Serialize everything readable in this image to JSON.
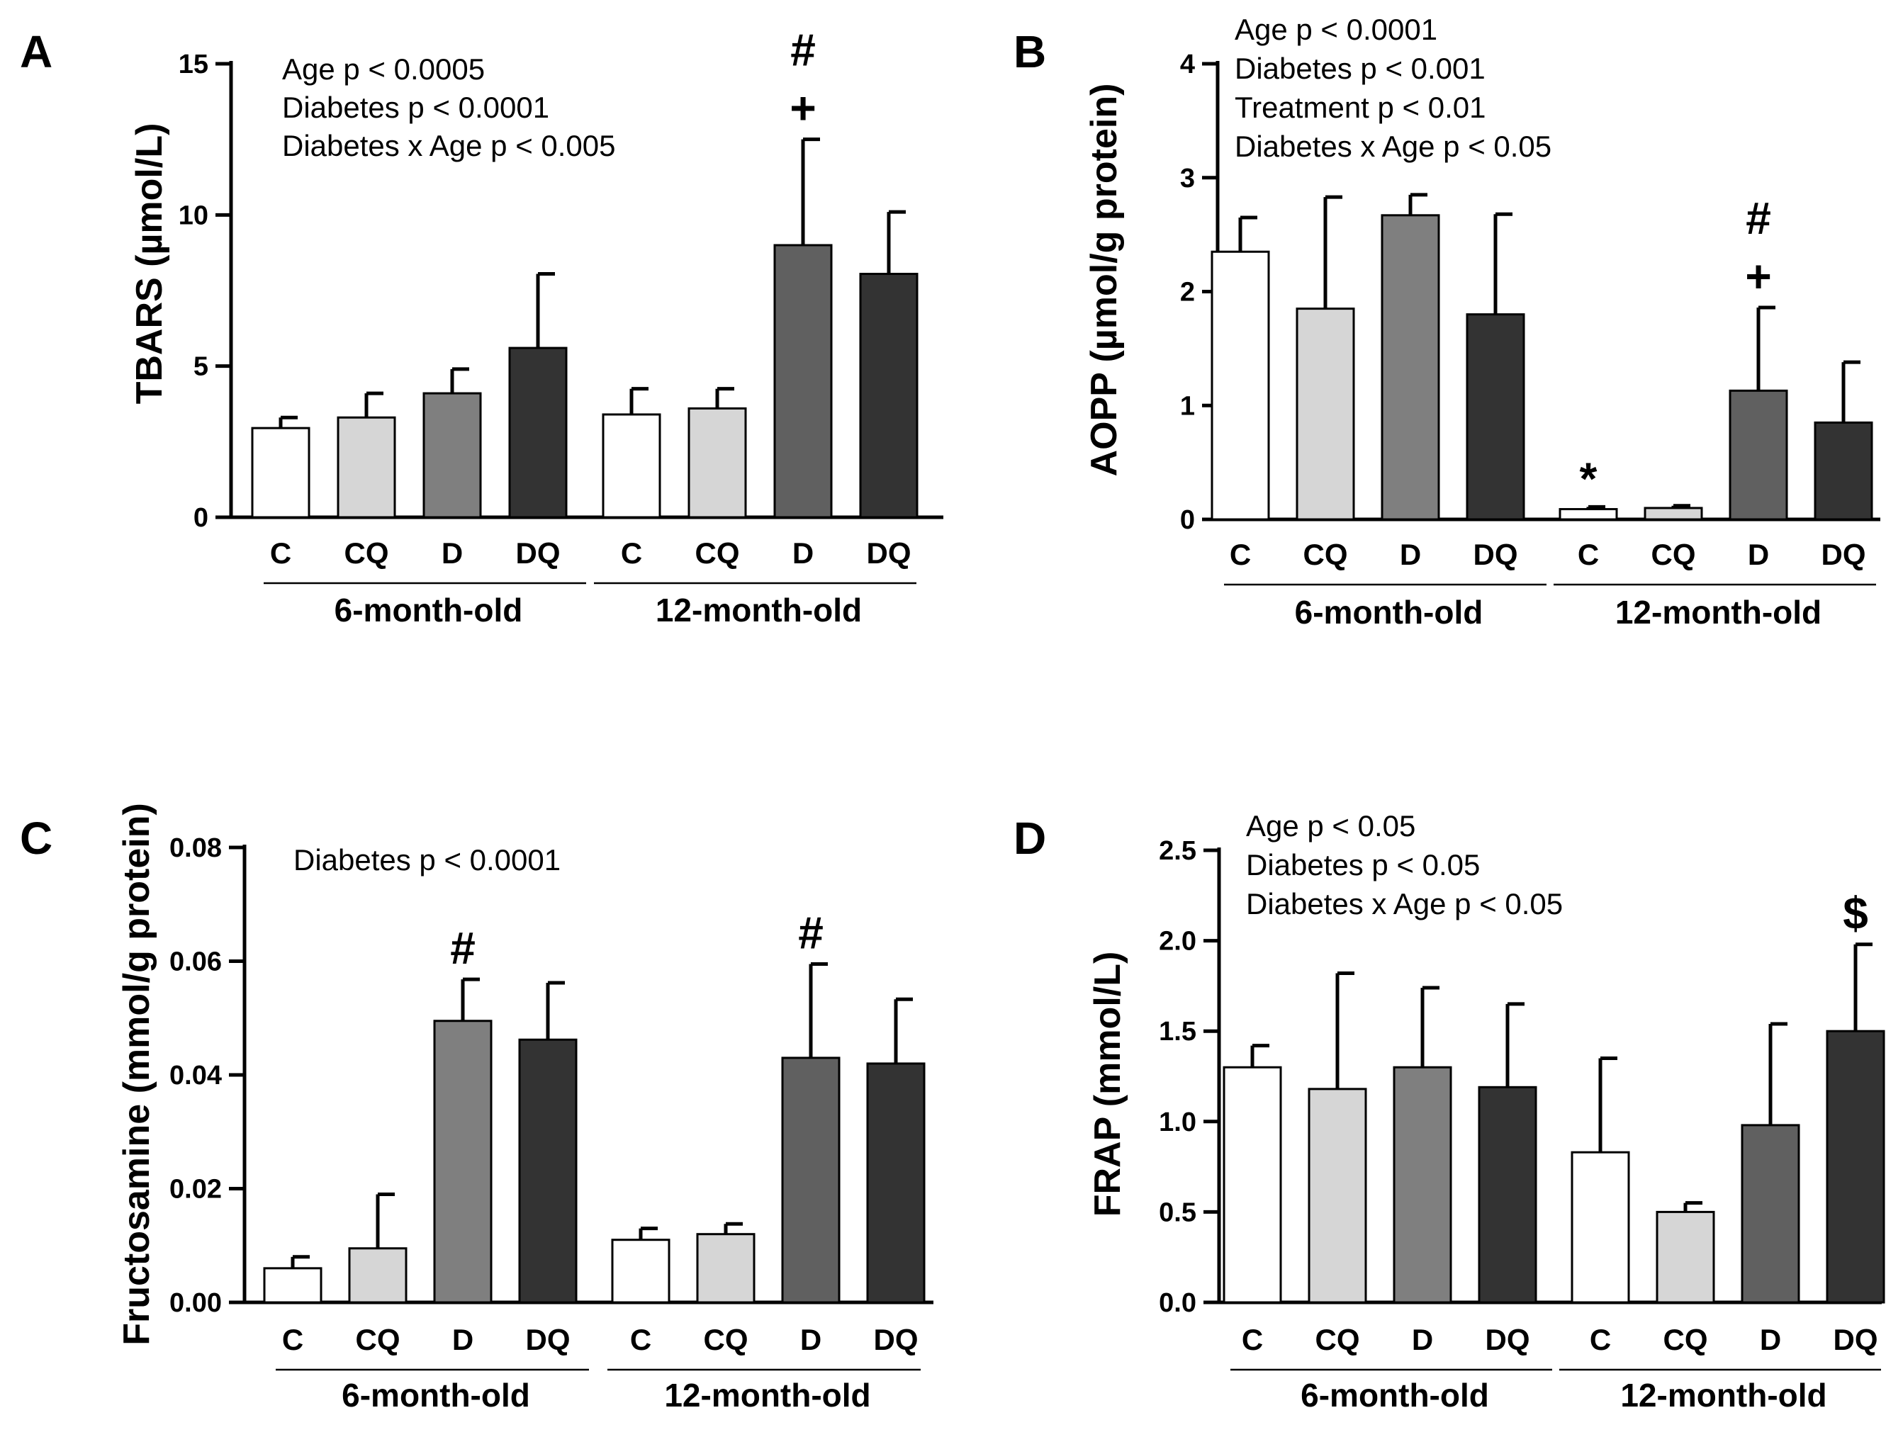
{
  "figure": {
    "categories": [
      "C",
      "CQ",
      "D",
      "DQ",
      "C",
      "CQ",
      "D",
      "DQ"
    ],
    "groups": [
      "6-month-old",
      "12-month-old"
    ],
    "bar_colors": [
      "#ffffff",
      "#d6d6d6",
      "#7f7f7f",
      "#333333",
      "#ffffff",
      "#d6d6d6",
      "#606060",
      "#333333"
    ]
  },
  "chart_data": [
    {
      "id": "A",
      "type": "bar",
      "title": "",
      "panel_label": "A",
      "ylabel": "TBARS (µmol/L)",
      "ylim": [
        0,
        15
      ],
      "yticks": [
        0,
        5,
        10,
        15
      ],
      "ytick_labels": [
        "0",
        "5",
        "10",
        "15"
      ],
      "categories": [
        "C",
        "CQ",
        "D",
        "DQ",
        "C",
        "CQ",
        "D",
        "DQ"
      ],
      "groups": [
        "6-month-old",
        "12-month-old"
      ],
      "values": [
        2.95,
        3.3,
        4.1,
        5.6,
        3.4,
        3.6,
        9.0,
        8.05
      ],
      "errors": [
        0.35,
        0.8,
        0.8,
        2.45,
        0.85,
        0.65,
        3.5,
        2.05
      ],
      "annotations": [
        "Age p < 0.0005",
        "Diabetes p < 0.0001",
        "Diabetes x Age p < 0.005"
      ],
      "bar_marks": [
        {
          "index": 6,
          "symbols": [
            "#",
            "+"
          ]
        }
      ]
    },
    {
      "id": "B",
      "type": "bar",
      "title": "",
      "panel_label": "B",
      "ylabel": "AOPP (µmol/g protein)",
      "ylim": [
        0,
        4
      ],
      "yticks": [
        0,
        1,
        2,
        3,
        4
      ],
      "ytick_labels": [
        "0",
        "1",
        "2",
        "3",
        "4"
      ],
      "categories": [
        "C",
        "CQ",
        "D",
        "DQ",
        "C",
        "CQ",
        "D",
        "DQ"
      ],
      "groups": [
        "6-month-old",
        "12-month-old"
      ],
      "values": [
        2.35,
        1.85,
        2.67,
        1.8,
        0.09,
        0.1,
        1.13,
        0.85
      ],
      "errors": [
        0.3,
        0.98,
        0.18,
        0.88,
        0.02,
        0.02,
        0.73,
        0.53
      ],
      "annotations": [
        "Age p < 0.0001",
        "Diabetes p < 0.001",
        "Treatment p < 0.01",
        "Diabetes x Age p < 0.05"
      ],
      "bar_marks": [
        {
          "index": 4,
          "symbols": [
            "*"
          ]
        },
        {
          "index": 6,
          "symbols": [
            "#",
            "+"
          ]
        }
      ]
    },
    {
      "id": "C",
      "type": "bar",
      "title": "",
      "panel_label": "C",
      "ylabel": "Fructosamine (mmol/g protein)",
      "ylim": [
        0,
        0.08
      ],
      "yticks": [
        0,
        0.02,
        0.04,
        0.06,
        0.08
      ],
      "ytick_labels": [
        "0.00",
        "0.02",
        "0.04",
        "0.06",
        "0.08"
      ],
      "categories": [
        "C",
        "CQ",
        "D",
        "DQ",
        "C",
        "CQ",
        "D",
        "DQ"
      ],
      "groups": [
        "6-month-old",
        "12-month-old"
      ],
      "values": [
        0.006,
        0.0095,
        0.0495,
        0.0462,
        0.011,
        0.012,
        0.043,
        0.042
      ],
      "errors": [
        0.002,
        0.0095,
        0.0073,
        0.01,
        0.002,
        0.0018,
        0.0165,
        0.0113
      ],
      "annotations": [
        "Diabetes p < 0.0001"
      ],
      "bar_marks": [
        {
          "index": 2,
          "symbols": [
            "#"
          ]
        },
        {
          "index": 6,
          "symbols": [
            "#"
          ]
        }
      ]
    },
    {
      "id": "D",
      "type": "bar",
      "title": "",
      "panel_label": "D",
      "ylabel": "FRAP (mmol/L)",
      "ylim": [
        0,
        2.5
      ],
      "yticks": [
        0,
        0.5,
        1.0,
        1.5,
        2.0,
        2.5
      ],
      "ytick_labels": [
        "0.0",
        "0.5",
        "1.0",
        "1.5",
        "2.0",
        "2.5"
      ],
      "categories": [
        "C",
        "CQ",
        "D",
        "DQ",
        "C",
        "CQ",
        "D",
        "DQ"
      ],
      "groups": [
        "6-month-old",
        "12-month-old"
      ],
      "values": [
        1.3,
        1.18,
        1.3,
        1.19,
        0.83,
        0.5,
        0.98,
        1.5
      ],
      "errors": [
        0.12,
        0.64,
        0.44,
        0.46,
        0.52,
        0.05,
        0.56,
        0.48
      ],
      "annotations": [
        "Age p < 0.05",
        "Diabetes p < 0.05",
        "Diabetes x Age p < 0.05"
      ],
      "bar_marks": [
        {
          "index": 7,
          "symbols": [
            "$"
          ]
        }
      ]
    }
  ]
}
